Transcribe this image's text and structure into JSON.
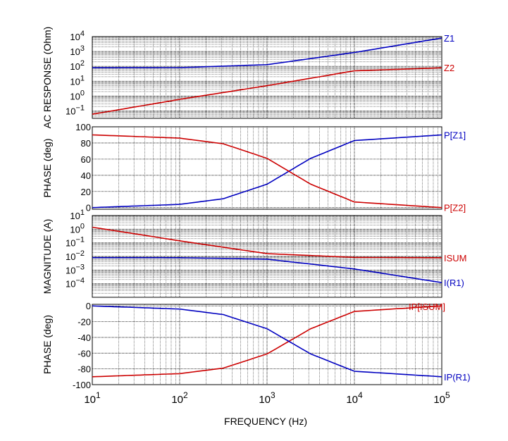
{
  "chart_data": [
    {
      "type": "line",
      "ylabel": "AC RESPONSE  (Ohm)",
      "yscale": "log",
      "ylim_exponents": [
        -1.5,
        4
      ],
      "ytick_exponents": [
        -1,
        0,
        1,
        2,
        3,
        4
      ],
      "xscale": "log",
      "xlim": [
        10,
        100000
      ],
      "grid": true,
      "series": [
        {
          "name": "Z1",
          "color": "#0000c0",
          "x": [
            10,
            100,
            1000,
            10000,
            100000
          ],
          "y": [
            80,
            82,
            130,
            860,
            8000
          ]
        },
        {
          "name": "Z2",
          "color": "#cc0000",
          "x": [
            10,
            100,
            1000,
            10000,
            100000
          ],
          "y": [
            0.06,
            0.6,
            5,
            50,
            80
          ]
        }
      ]
    },
    {
      "type": "line",
      "ylabel": "PHASE  (deg)",
      "yscale": "linear",
      "ylim": [
        -2,
        100
      ],
      "yticks": [
        0,
        20,
        40,
        60,
        80,
        100
      ],
      "xscale": "log",
      "xlim": [
        10,
        100000
      ],
      "grid": true,
      "series": [
        {
          "name": "P[Z1]",
          "color": "#0000c0",
          "x": [
            10,
            100,
            316,
            1000,
            1778,
            3162,
            10000,
            100000
          ],
          "y": [
            0,
            4,
            11,
            29,
            45,
            61,
            83,
            90
          ]
        },
        {
          "name": "P[Z2]",
          "color": "#cc0000",
          "x": [
            10,
            100,
            316,
            1000,
            1778,
            3162,
            10000,
            100000
          ],
          "y": [
            90,
            86,
            79,
            61,
            45,
            29,
            7,
            0
          ]
        }
      ]
    },
    {
      "type": "line",
      "ylabel": "MAGNITUDE  (A)",
      "yscale": "log",
      "ylim_exponents": [
        -5,
        1
      ],
      "ytick_exponents": [
        -4,
        -3,
        -2,
        -1,
        0,
        1
      ],
      "xscale": "log",
      "xlim": [
        10,
        100000
      ],
      "grid": true,
      "series": [
        {
          "name": "ISUM",
          "color": "#cc0000",
          "x": [
            10,
            100,
            1000,
            10000,
            100000
          ],
          "y": [
            1.4,
            0.14,
            0.016,
            0.0085,
            0.008
          ]
        },
        {
          "name": "I(R1)",
          "color": "#0000c0",
          "x": [
            10,
            100,
            1000,
            10000,
            100000
          ],
          "y": [
            0.0082,
            0.0081,
            0.0063,
            0.0012,
            0.00012
          ]
        }
      ]
    },
    {
      "type": "line",
      "ylabel": "PHASE  (deg)",
      "yscale": "linear",
      "ylim": [
        -100,
        2
      ],
      "yticks": [
        0,
        -20,
        -40,
        -60,
        -80,
        -100
      ],
      "xscale": "log",
      "xlim": [
        10,
        100000
      ],
      "xlabel": "FREQUENCY  (Hz)",
      "xtick_exponents": [
        1,
        2,
        3,
        4,
        5
      ],
      "grid": true,
      "series": [
        {
          "name": "IP[ISUM]",
          "color": "#cc0000",
          "x": [
            10,
            100,
            316,
            1000,
            1778,
            3162,
            10000,
            100000
          ],
          "y": [
            -90,
            -86,
            -79,
            -61,
            -45,
            -29,
            -7,
            0
          ]
        },
        {
          "name": "IP(R1)",
          "color": "#0000c0",
          "x": [
            10,
            100,
            316,
            1000,
            1778,
            3162,
            10000,
            100000
          ],
          "y": [
            0,
            -4,
            -11,
            -29,
            -45,
            -61,
            -83,
            -90
          ]
        }
      ]
    }
  ]
}
